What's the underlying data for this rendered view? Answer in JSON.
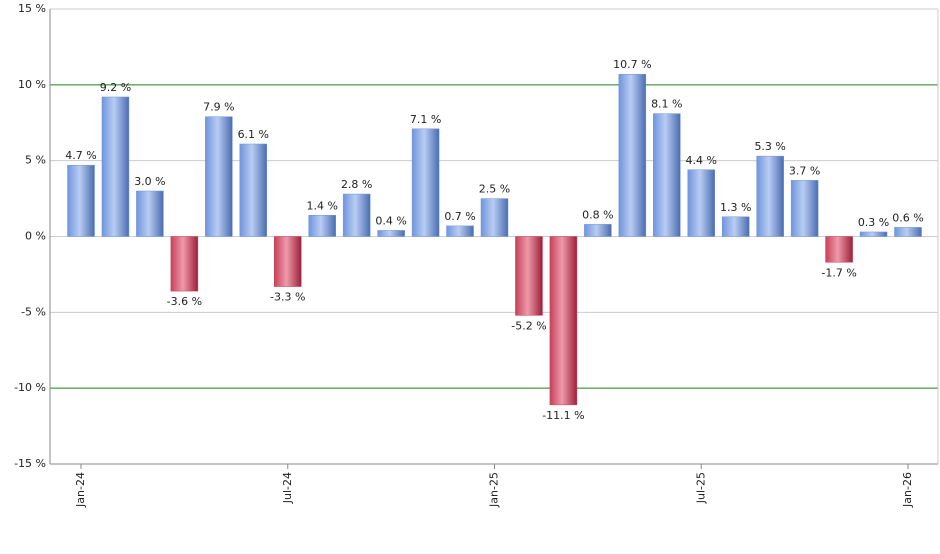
{
  "chart_data": {
    "type": "bar",
    "categories": [
      "Jan-24",
      null,
      null,
      null,
      null,
      null,
      "Jul-24",
      null,
      null,
      null,
      null,
      null,
      "Jan-25",
      null,
      null,
      null,
      null,
      null,
      "Jul-25",
      null,
      null,
      null,
      null,
      null,
      "Jan-26"
    ],
    "values": [
      4.7,
      9.2,
      3.0,
      -3.6,
      7.9,
      6.1,
      -3.3,
      1.4,
      2.8,
      0.4,
      7.1,
      0.7,
      2.5,
      -5.2,
      -11.1,
      0.8,
      10.7,
      8.1,
      4.4,
      1.3,
      5.3,
      3.7,
      -1.7,
      0.3,
      0.6
    ],
    "value_labels": [
      "4.7 %",
      "9.2 %",
      "3.0 %",
      "-3.6 %",
      "7.9 %",
      "6.1 %",
      "-3.3 %",
      "1.4 %",
      "2.8 %",
      "0.4 %",
      "7.1 %",
      "0.7 %",
      "2.5 %",
      "-5.2 %",
      "-11.1 %",
      "0.8 %",
      "10.7 %",
      "8.1 %",
      "4.4 %",
      "1.3 %",
      "5.3 %",
      "3.7 %",
      "-1.7 %",
      "0.3 %",
      "0.6 %"
    ],
    "color": "#6f95dc",
    "negative_color": "#c8405a",
    "ylim": [
      -15,
      15
    ],
    "yticks": [
      {
        "value": -15,
        "label": "-15 %"
      },
      {
        "value": -10,
        "label": "-10 %"
      },
      {
        "value": -5,
        "label": "-5 %"
      },
      {
        "value": 0,
        "label": "0 %"
      },
      {
        "value": 5,
        "label": "5 %"
      },
      {
        "value": 10,
        "label": "10 %"
      },
      {
        "value": 15,
        "label": "15 %"
      }
    ],
    "grid": true,
    "grid_color": "#cccccc",
    "reference_lines": [
      -10,
      10
    ],
    "reference_color": "#228b22"
  }
}
